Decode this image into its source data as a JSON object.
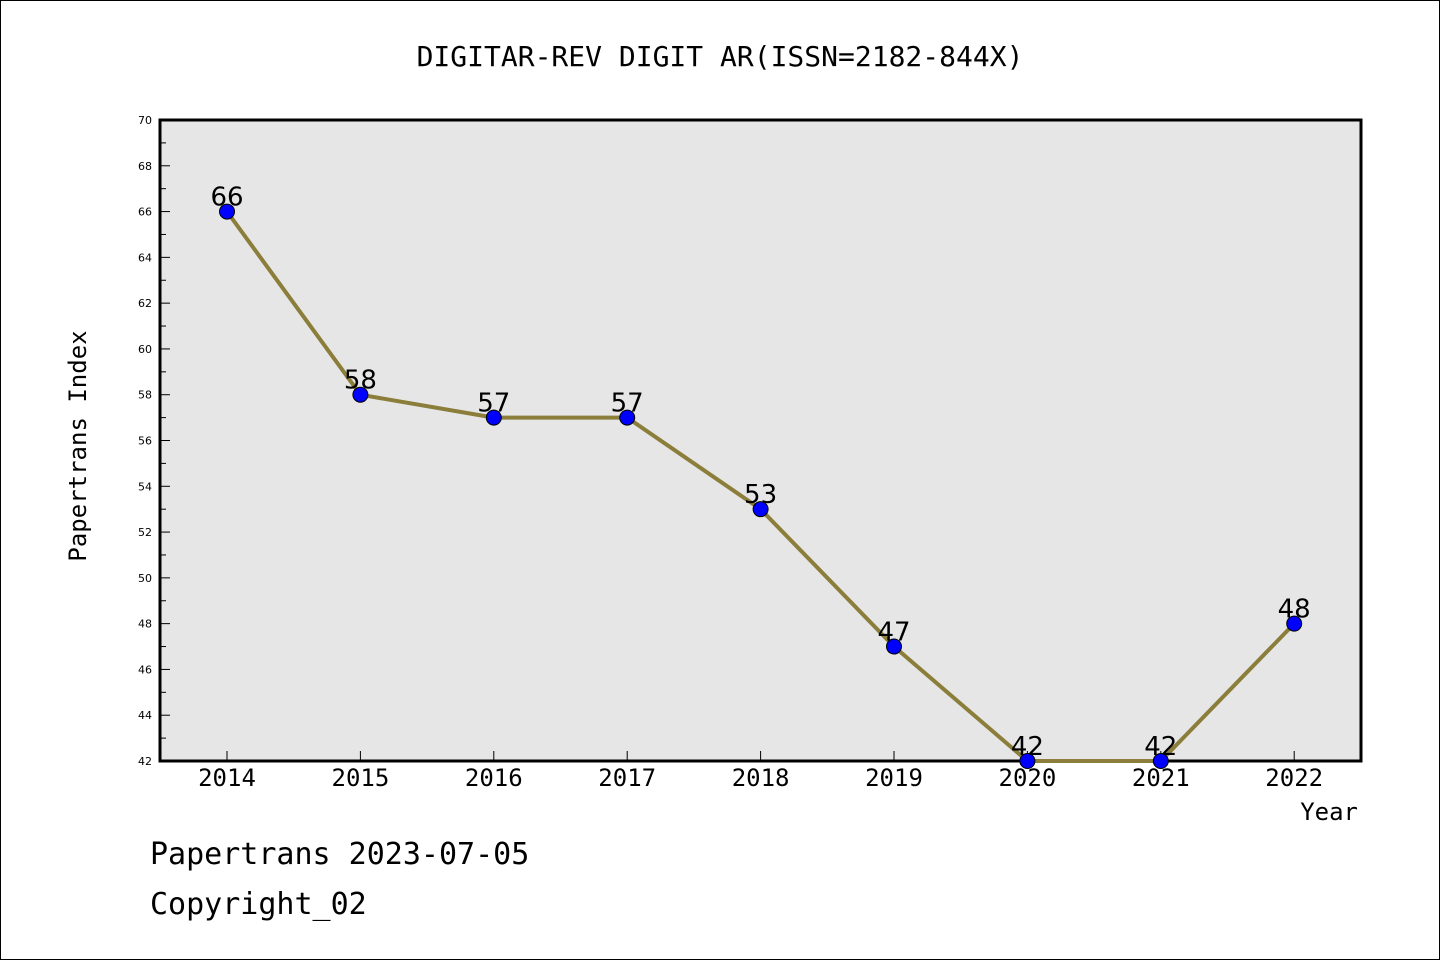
{
  "chart_data": {
    "type": "line",
    "title": "DIGITAR-REV DIGIT AR(ISSN=2182-844X)",
    "xlabel": "Year",
    "ylabel": "Papertrans Index",
    "categories": [
      "2014",
      "2015",
      "2016",
      "2017",
      "2018",
      "2019",
      "2020",
      "2021",
      "2022"
    ],
    "series": [
      {
        "values": [
          66,
          58,
          57,
          57,
          53,
          47,
          42,
          42,
          48
        ]
      }
    ],
    "ylim": [
      42,
      70
    ],
    "yticks": [
      42,
      44,
      46,
      48,
      50,
      52,
      54,
      56,
      58,
      60,
      62,
      64,
      66,
      68,
      70
    ],
    "grid": false,
    "data_labels": true,
    "colors": {
      "line": "#8B7D3A",
      "marker": "#0000FF",
      "plot_background": "#E6E6E6"
    }
  },
  "footer": {
    "line1": "Papertrans 2023-07-05",
    "line2": "Copyright_02"
  }
}
